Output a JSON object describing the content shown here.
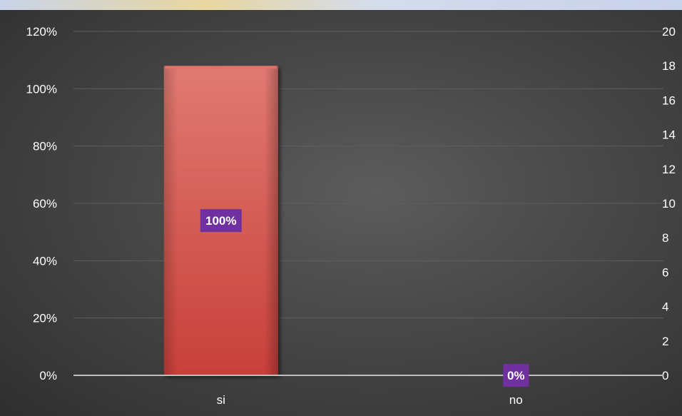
{
  "chart_data": {
    "type": "bar",
    "categories": [
      "si",
      "no"
    ],
    "values": [
      100,
      0
    ],
    "data_labels": [
      "100%",
      "0%"
    ],
    "ylim": [
      0,
      120
    ],
    "yticks": [
      0,
      20,
      40,
      60,
      80,
      100,
      120
    ],
    "ytick_labels": [
      "0%",
      "20%",
      "40%",
      "60%",
      "80%",
      "100%",
      "120%"
    ],
    "y2lim": [
      0,
      20
    ],
    "y2ticks": [
      0,
      2,
      4,
      6,
      8,
      10,
      12,
      14,
      16,
      18,
      20
    ],
    "y2tick_labels": [
      "0",
      "2",
      "4",
      "6",
      "8",
      "10",
      "12",
      "14",
      "16",
      "18",
      "20"
    ],
    "grid": true,
    "legend": "none",
    "title": "",
    "xlabel": "",
    "ylabel": ""
  },
  "colors": {
    "bar": "#d3524c",
    "bar_top": "#e0716b",
    "data_label_bg": "#7030a0",
    "axis_text": "#ffffff",
    "gridline": "#5e5e5e",
    "baseline": "#bfbfbf"
  }
}
